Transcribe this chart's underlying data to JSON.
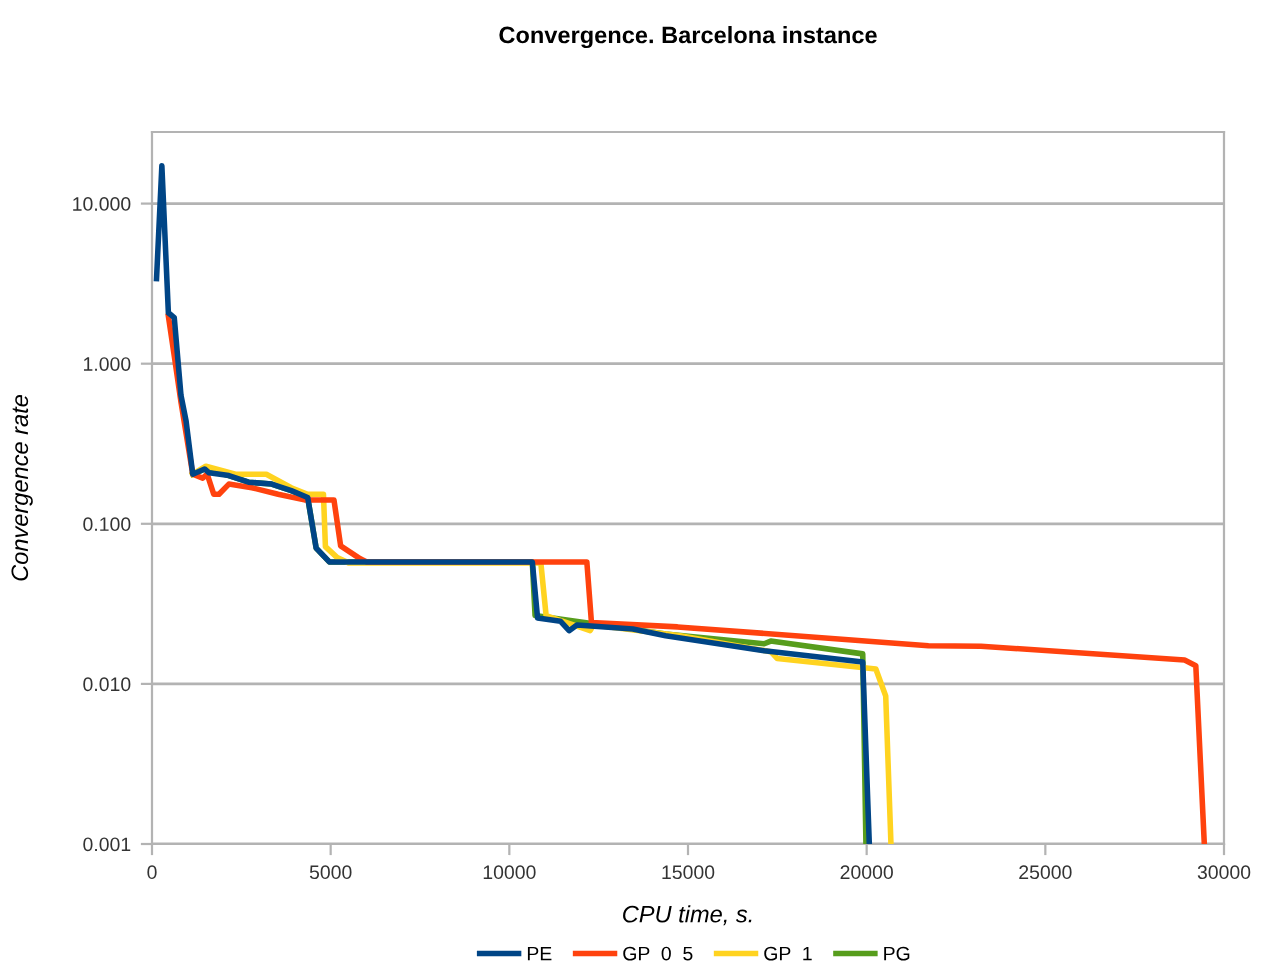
{
  "chart_data": {
    "type": "line",
    "title": "Convergence. Barcelona instance",
    "xlabel": "CPU time, s.",
    "ylabel": "Convergence rate",
    "log": "y",
    "grid": "y",
    "legend": "bottom",
    "marker": "none",
    "line_style": "solid",
    "xlim": [
      0,
      30000
    ],
    "xticks": [
      0,
      5000,
      10000,
      15000,
      20000,
      25000,
      30000
    ],
    "ylim": [
      0.001,
      28
    ],
    "yticks": [
      {
        "value": 0.001,
        "label": "0.001"
      },
      {
        "value": 0.01,
        "label": "0.010"
      },
      {
        "value": 0.1,
        "label": "0.100"
      },
      {
        "value": 1,
        "label": "1.000"
      },
      {
        "value": 10,
        "label": "10.000"
      }
    ],
    "series": [
      {
        "name": "PE",
        "color": "#004586",
        "x": [
          127,
          276,
          458,
          623,
          811,
          954,
          1141,
          1472,
          1599,
          2151,
          2702,
          3348,
          3899,
          4357,
          4594,
          4963,
          10643,
          10790,
          11434,
          11673,
          11893,
          13456,
          14375,
          17133,
          19890,
          20074
        ],
        "values": [
          3.4,
          17.2,
          2.08,
          1.94,
          0.634,
          0.438,
          0.204,
          0.22,
          0.208,
          0.2,
          0.182,
          0.177,
          0.161,
          0.146,
          0.0705,
          0.0578,
          0.0578,
          0.0258,
          0.0246,
          0.0215,
          0.0233,
          0.022,
          0.02,
          0.0161,
          0.0137,
          0.001
        ]
      },
      {
        "name": "GP  0  5",
        "color": "#ff420e",
        "x": [
          458,
          623,
          811,
          1141,
          1417,
          1544,
          1727,
          1875,
          2151,
          2796,
          3530,
          4265,
          5092,
          5279,
          5830,
          6012,
          12169,
          12298,
          14706,
          21728,
          23199,
          28897,
          29211,
          29449
        ],
        "values": [
          1.98,
          1.12,
          0.576,
          0.204,
          0.193,
          0.204,
          0.153,
          0.153,
          0.177,
          0.168,
          0.153,
          0.141,
          0.141,
          0.0728,
          0.0604,
          0.0578,
          0.0578,
          0.0242,
          0.0227,
          0.0173,
          0.0172,
          0.0141,
          0.013,
          0.001
        ]
      },
      {
        "name": "GP  1",
        "color": "#ffd320",
        "x": [
          1141,
          1508,
          2335,
          3200,
          3899,
          4357,
          4798,
          4853,
          5184,
          5500,
          10882,
          11029,
          12261,
          12353,
          14783,
          17316,
          17498,
          20257,
          20533,
          20680
        ],
        "values": [
          0.204,
          0.229,
          0.204,
          0.204,
          0.168,
          0.153,
          0.153,
          0.072,
          0.0615,
          0.057,
          0.057,
          0.0267,
          0.0215,
          0.0233,
          0.02,
          0.0159,
          0.0144,
          0.0124,
          0.0084,
          0.001
        ]
      },
      {
        "name": "PG",
        "color": "#579d1c",
        "x": [
          1141,
          1472,
          2151,
          2702,
          3348,
          3899,
          4357,
          4594,
          4963,
          10643,
          10720,
          14375,
          17133,
          17316,
          19890,
          19980
        ],
        "values": [
          0.204,
          0.22,
          0.2,
          0.182,
          0.177,
          0.161,
          0.146,
          0.0705,
          0.0578,
          0.0578,
          0.0267,
          0.0205,
          0.0178,
          0.0185,
          0.0154,
          0.001
        ]
      }
    ]
  }
}
